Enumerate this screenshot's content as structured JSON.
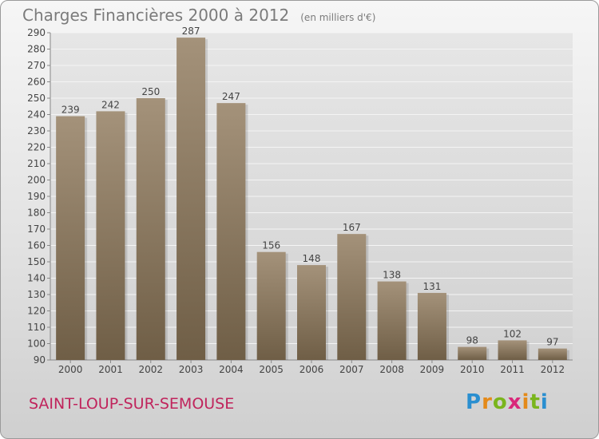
{
  "header": {
    "title": "Charges Financières 2000 à 2012",
    "unit": "(en milliers d'€)"
  },
  "footer": {
    "city": "SAINT-LOUP-SUR-SEMOUSE",
    "logo": "Proxiti"
  },
  "colors": {
    "bar_top": "#a4927a",
    "bar_bottom": "#6f5e46",
    "plot_bg": "#dcdcdc",
    "grid": "#f4f4f4",
    "text": "#444444"
  },
  "chart_data": {
    "type": "bar",
    "title": "Charges Financières 2000 à 2012",
    "subtitle": "(en milliers d'€)",
    "xlabel": "",
    "ylabel": "",
    "categories": [
      "2000",
      "2001",
      "2002",
      "2003",
      "2004",
      "2005",
      "2006",
      "2007",
      "2008",
      "2009",
      "2010",
      "2011",
      "2012"
    ],
    "values": [
      239,
      242,
      250,
      287,
      247,
      156,
      148,
      167,
      138,
      131,
      98,
      102,
      97
    ],
    "ylim": [
      90,
      290
    ],
    "yticks": [
      90,
      100,
      110,
      120,
      130,
      140,
      150,
      160,
      170,
      180,
      190,
      200,
      210,
      220,
      230,
      240,
      250,
      260,
      270,
      280,
      290
    ],
    "grid": true,
    "legend": "none"
  }
}
